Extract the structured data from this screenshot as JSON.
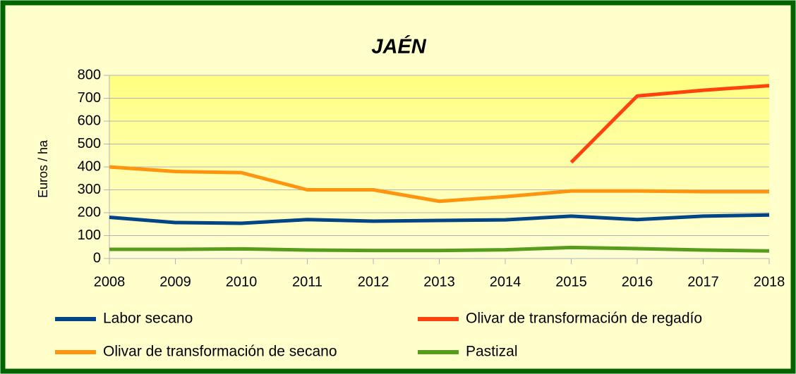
{
  "chart_data": {
    "type": "line",
    "title": "JAÉN",
    "y_label": "Euros / ha",
    "x": [
      2008,
      2009,
      2010,
      2011,
      2012,
      2013,
      2014,
      2015,
      2016,
      2017,
      2018
    ],
    "xlim": [
      2008,
      2018
    ],
    "xticks": [
      2008,
      2009,
      2010,
      2011,
      2012,
      2013,
      2014,
      2015,
      2016,
      2017,
      2018
    ],
    "ylim": [
      0,
      800
    ],
    "yticks": [
      0,
      100,
      200,
      300,
      400,
      500,
      600,
      700,
      800
    ],
    "grid": true,
    "legend": "bottom",
    "series": [
      {
        "name": "Labor secano",
        "color": "#004586",
        "values": [
          180,
          157,
          154,
          170,
          163,
          166,
          169,
          185,
          170,
          185,
          190
        ]
      },
      {
        "name": "Olivar de transformación de regadío",
        "color": "#ff420e",
        "values": [
          null,
          null,
          null,
          null,
          null,
          null,
          null,
          420,
          710,
          735,
          755
        ]
      },
      {
        "name": "Olivar de transformación de secano",
        "color": "#ff950e",
        "values": [
          400,
          380,
          375,
          300,
          300,
          250,
          270,
          295,
          295,
          292,
          292
        ]
      },
      {
        "name": "Pastizal",
        "color": "#579d1c",
        "values": [
          40,
          40,
          42,
          37,
          35,
          35,
          38,
          48,
          43,
          37,
          33
        ]
      }
    ]
  }
}
